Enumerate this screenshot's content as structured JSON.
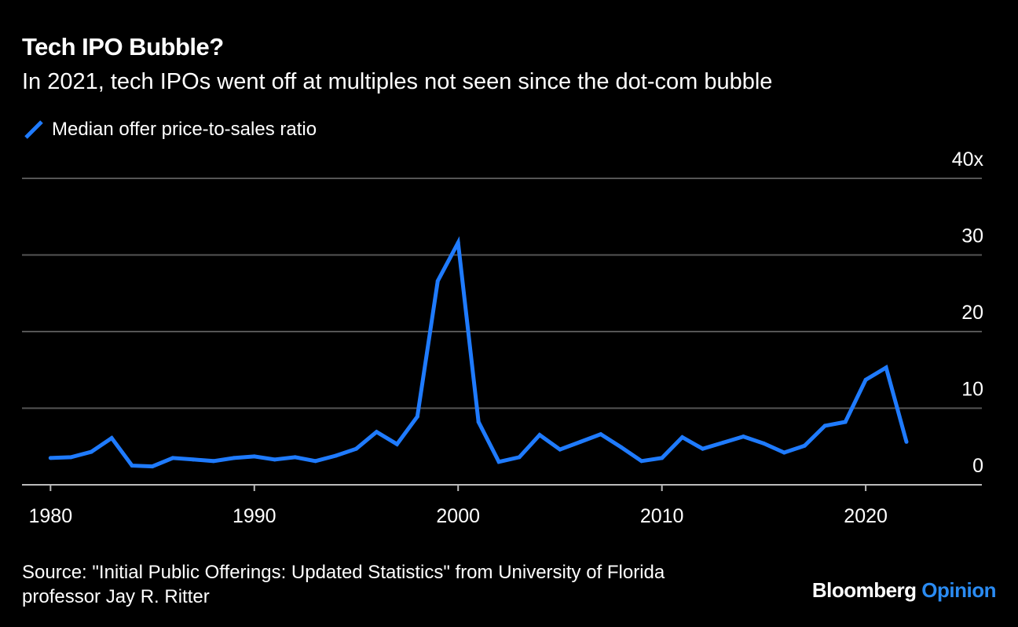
{
  "title": "Tech IPO Bubble?",
  "subtitle": "In 2021, tech IPOs went off at multiples not seen since the dot-com bubble",
  "legend": {
    "label": "Median offer price-to-sales ratio"
  },
  "source": {
    "line1": "Source: \"Initial Public Offerings: Updated Statistics\" from University of Florida",
    "line2": "professor Jay R. Ritter"
  },
  "brand": {
    "name": "Bloomberg",
    "accent": "Opinion"
  },
  "colors": {
    "line": "#1f7bff",
    "grid": "#555555",
    "background": "#000000",
    "text": "#ffffff",
    "accent": "#2a8bf2"
  },
  "chart_data": {
    "type": "line",
    "title": "Tech IPO Bubble?",
    "xlabel": "",
    "ylabel": "",
    "xlim": [
      1978.6,
      2025.7
    ],
    "ylim": [
      0,
      40
    ],
    "y_ticks": [
      0,
      10,
      20,
      30,
      40
    ],
    "y_tick_labels": [
      "0",
      "10",
      "20",
      "30",
      "40x"
    ],
    "x_ticks": [
      1980,
      1990,
      2000,
      2010,
      2020
    ],
    "x_tick_labels": [
      "1980",
      "1990",
      "2000",
      "2010",
      "2020"
    ],
    "series": [
      {
        "name": "Median offer price-to-sales ratio",
        "x": [
          1980,
          1981,
          1982,
          1983,
          1984,
          1985,
          1986,
          1987,
          1988,
          1989,
          1990,
          1991,
          1992,
          1993,
          1994,
          1995,
          1996,
          1997,
          1998,
          1999,
          2000,
          2001,
          2002,
          2003,
          2004,
          2005,
          2006,
          2007,
          2008,
          2009,
          2010,
          2011,
          2012,
          2013,
          2014,
          2015,
          2016,
          2017,
          2018,
          2019,
          2020,
          2021,
          2022
        ],
        "values": [
          3.5,
          3.6,
          4.3,
          6.1,
          2.5,
          2.4,
          3.5,
          3.3,
          3.1,
          3.5,
          3.7,
          3.3,
          3.6,
          3.1,
          3.8,
          4.7,
          6.9,
          5.3,
          8.9,
          26.6,
          31.6,
          8.2,
          3.0,
          3.6,
          6.5,
          4.6,
          5.6,
          6.6,
          4.9,
          3.1,
          3.5,
          6.2,
          4.7,
          5.5,
          6.3,
          5.4,
          4.2,
          5.1,
          7.7,
          8.2,
          13.7,
          15.3,
          5.6
        ]
      }
    ]
  }
}
